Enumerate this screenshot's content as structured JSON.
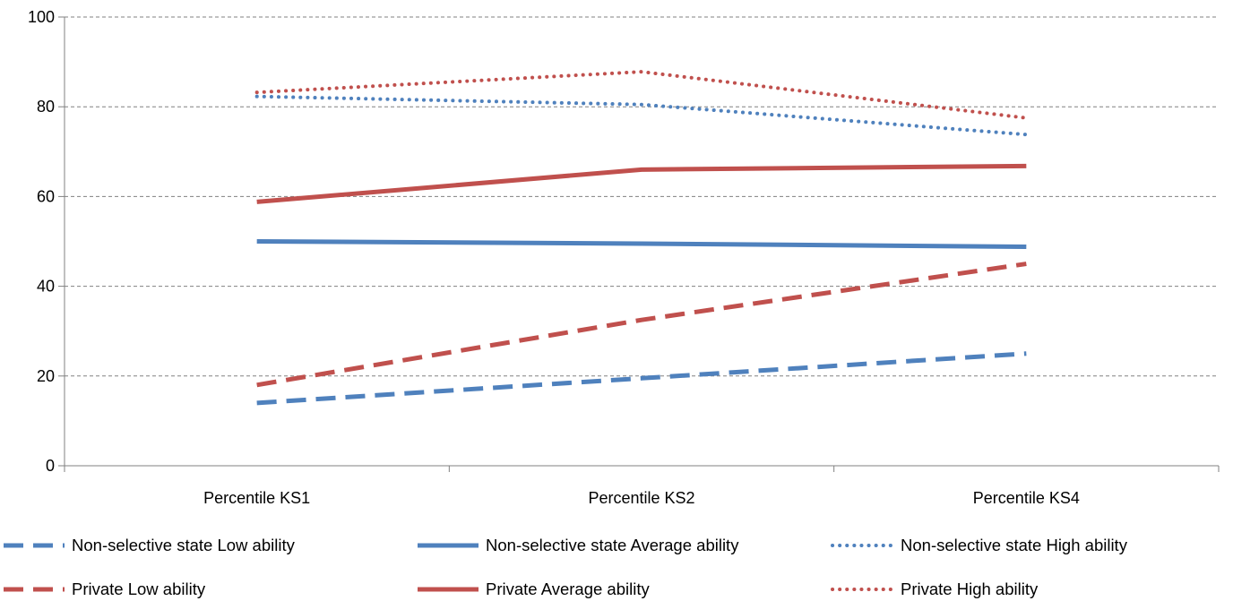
{
  "chart_data": {
    "type": "line",
    "categories": [
      "Percentile KS1",
      "Percentile KS2",
      "Percentile KS4"
    ],
    "ylim": [
      0,
      100
    ],
    "yticks": [
      0,
      20,
      40,
      60,
      80,
      100
    ],
    "grid": "horizontal dashed",
    "legend_position": "bottom",
    "series": [
      {
        "name": "Non-selective state Low ability",
        "values": [
          14,
          19.5,
          25
        ],
        "color": "#4f81bd",
        "dash": "dashed"
      },
      {
        "name": "Non-selective state Average ability",
        "values": [
          50,
          49.5,
          48.8
        ],
        "color": "#4f81bd",
        "dash": "solid"
      },
      {
        "name": "Non-selective state High ability",
        "values": [
          82.3,
          80.5,
          73.8
        ],
        "color": "#4f81bd",
        "dash": "dotted"
      },
      {
        "name": "Private Low ability",
        "values": [
          18,
          32.5,
          45
        ],
        "color": "#c0504d",
        "dash": "dashed"
      },
      {
        "name": "Private Average ability",
        "values": [
          58.8,
          66,
          66.8
        ],
        "color": "#c0504d",
        "dash": "solid"
      },
      {
        "name": "Private High ability",
        "values": [
          83.2,
          87.8,
          77.5
        ],
        "color": "#c0504d",
        "dash": "dotted"
      }
    ]
  }
}
